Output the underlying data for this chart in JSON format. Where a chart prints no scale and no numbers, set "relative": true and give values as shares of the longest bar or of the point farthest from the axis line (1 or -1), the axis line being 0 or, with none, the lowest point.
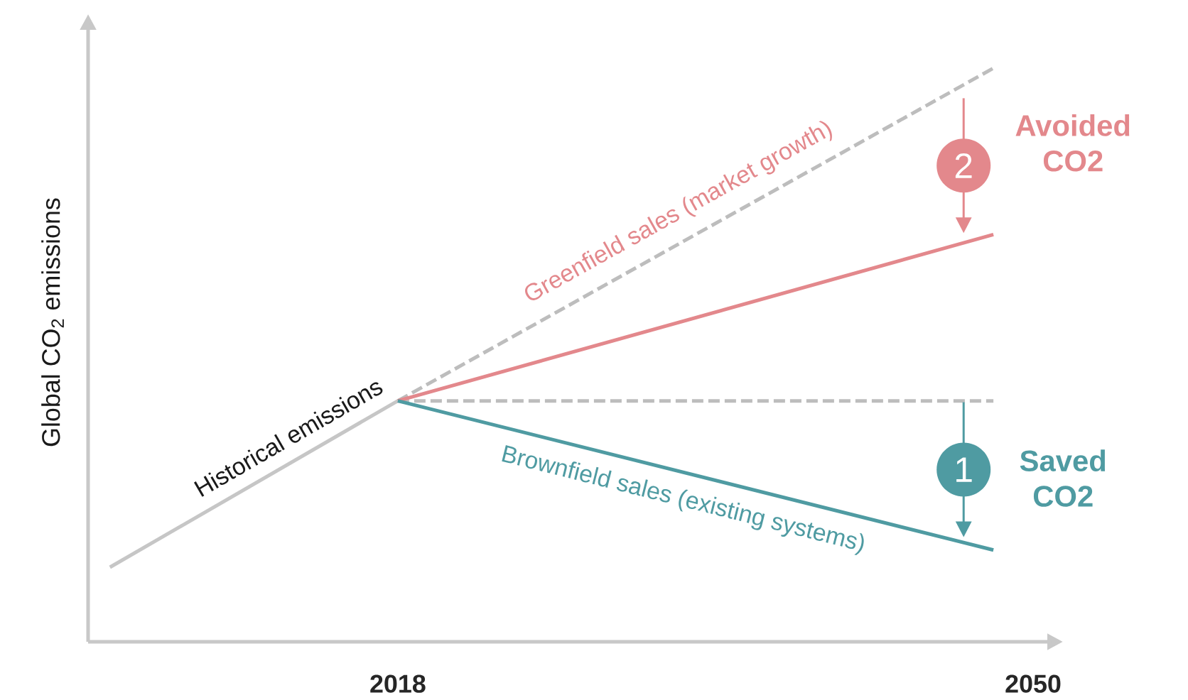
{
  "chart_data": {
    "type": "line",
    "ylabel": "Global CO$_{2}$ emissions",
    "relative": true,
    "xlim": [
      2002.4,
      2050
    ],
    "xticks": [
      2018,
      2050
    ],
    "marker": "none",
    "line_style": "solid",
    "series": [
      {
        "color": "#c6c6c6",
        "x": [
          2003.5,
          2018
        ],
        "values": [
          0.13,
          0.42
        ]
      },
      {
        "color": "#bdbdbd",
        "x": [
          2018,
          2048
        ],
        "values": [
          0.42,
          1
        ],
        "line_style": "dashed"
      },
      {
        "color": "#bdbdbd",
        "x": [
          2018,
          2048
        ],
        "values": [
          0.42,
          0.42
        ],
        "line_style": "dashed"
      },
      {
        "color": "#e3888c",
        "x": [
          2018,
          2048
        ],
        "values": [
          0.42,
          0.71
        ]
      },
      {
        "color": "#4f9ba2",
        "x": [
          2018,
          2048
        ],
        "values": [
          0.42,
          0.16
        ]
      }
    ],
    "annotations": [
      "Historical emissions",
      "Greenfield sales (market growth)",
      "Brownfield sales (existing systems)",
      {
        "text": "2",
        "x": 2046.5,
        "y": 0.83
      },
      "Avoided CO2",
      {
        "text": "1",
        "x": 2046.5,
        "y": 0.3
      },
      "Saved CO2"
    ]
  }
}
